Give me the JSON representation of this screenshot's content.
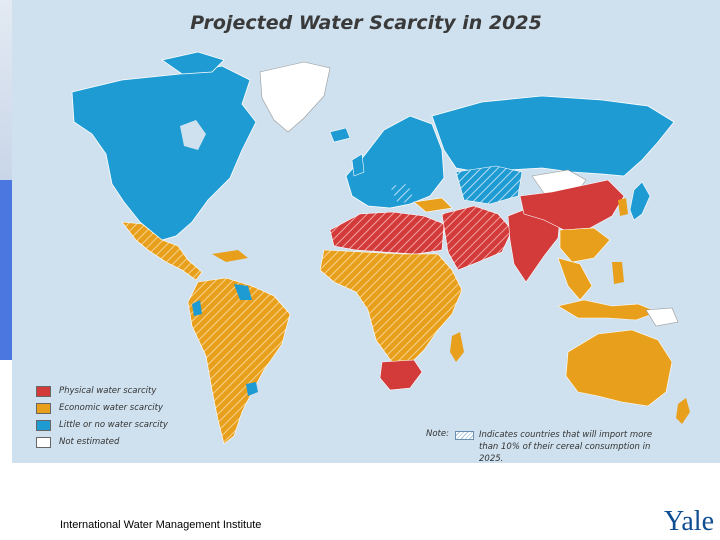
{
  "map": {
    "title": "Projected Water Scarcity in 2025",
    "legend": [
      {
        "label": "Physical water scarcity",
        "color": "#d33a3a"
      },
      {
        "label": "Economic water scarcity",
        "color": "#e8a01c"
      },
      {
        "label": "Little or no water scarcity",
        "color": "#1f9bd3"
      },
      {
        "label": "Not estimated",
        "color": "#ffffff"
      }
    ],
    "note_label": "Note:",
    "note_text": "Indicates countries that will import more than 10% of their cereal consumption in 2025."
  },
  "footer": {
    "source": "International Water Management Institute",
    "logo": "Yale"
  }
}
